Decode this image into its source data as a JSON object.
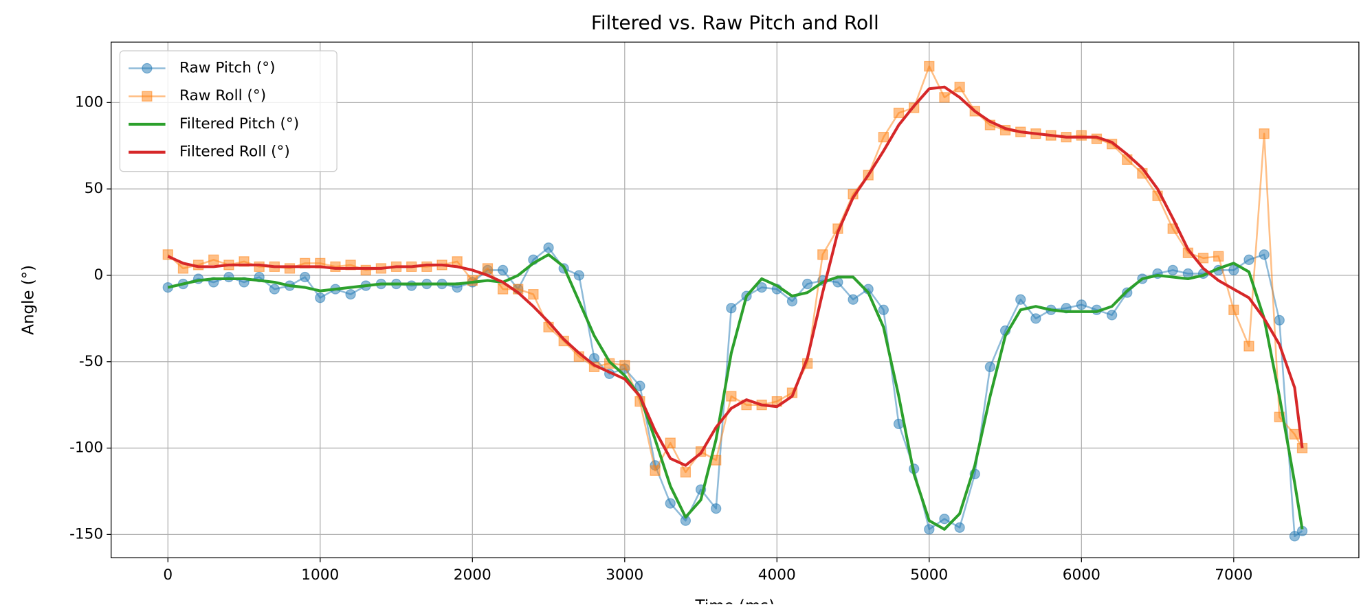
{
  "chart_data": {
    "type": "line",
    "title": "Filtered vs. Raw Pitch and Roll",
    "xlabel": "Time (ms)",
    "ylabel": "Angle (°)",
    "x": [
      0,
      100,
      200,
      300,
      400,
      500,
      600,
      700,
      800,
      900,
      1000,
      1100,
      1200,
      1300,
      1400,
      1500,
      1600,
      1700,
      1800,
      1900,
      2000,
      2100,
      2200,
      2300,
      2400,
      2500,
      2600,
      2700,
      2800,
      2900,
      3000,
      3100,
      3200,
      3300,
      3400,
      3500,
      3600,
      3700,
      3800,
      3900,
      4000,
      4100,
      4200,
      4300,
      4400,
      4500,
      4600,
      4700,
      4800,
      4900,
      5000,
      5100,
      5200,
      5300,
      5400,
      5500,
      5600,
      5700,
      5800,
      5900,
      6000,
      6100,
      6200,
      6300,
      6400,
      6500,
      6600,
      6700,
      6800,
      6900,
      7000,
      7100,
      7200,
      7300,
      7400,
      7450
    ],
    "series": [
      {
        "name": "Raw Pitch (°)",
        "color": "#1f77b4",
        "marker": "circle",
        "values": [
          -7,
          -5,
          -2,
          -4,
          -1,
          -4,
          -1,
          -8,
          -6,
          -1,
          -13,
          -8,
          -11,
          -6,
          -5,
          -5,
          -6,
          -5,
          -5,
          -7,
          -4,
          3,
          3,
          -8,
          9,
          16,
          4,
          0,
          -48,
          -57,
          -54,
          -64,
          -110,
          -132,
          -142,
          -124,
          -135,
          -19,
          -12,
          -7,
          -8,
          -15,
          -5,
          -3,
          -4,
          -14,
          -8,
          -20,
          -86,
          -112,
          -147,
          -141,
          -146,
          -115,
          -53,
          -32,
          -14,
          -25,
          -20,
          -19,
          -17,
          -20,
          -23,
          -10,
          -2,
          1,
          3,
          1,
          1,
          3,
          3,
          9,
          12,
          -26,
          -151,
          -148
        ]
      },
      {
        "name": "Raw Roll (°)",
        "color": "#ff7f0e",
        "marker": "square",
        "values": [
          12,
          4,
          6,
          9,
          6,
          8,
          5,
          5,
          4,
          7,
          7,
          5,
          6,
          3,
          4,
          5,
          5,
          5,
          6,
          8,
          -3,
          4,
          -8,
          -8,
          -11,
          -30,
          -38,
          -47,
          -53,
          -51,
          -52,
          -73,
          -113,
          -97,
          -114,
          -102,
          -107,
          -70,
          -75,
          -75,
          -73,
          -68,
          -51,
          12,
          27,
          47,
          58,
          80,
          94,
          97,
          121,
          103,
          109,
          95,
          87,
          84,
          83,
          82,
          81,
          80,
          81,
          79,
          76,
          67,
          59,
          46,
          27,
          13,
          10,
          11,
          -20,
          -41,
          82,
          -82,
          -92,
          -100
        ]
      },
      {
        "name": "Filtered Pitch (°)",
        "color": "#2ca02c",
        "values": [
          -7,
          -5,
          -3,
          -2,
          -2,
          -2,
          -3,
          -4,
          -6,
          -7,
          -9,
          -8,
          -7,
          -6,
          -5,
          -5,
          -5,
          -5,
          -5,
          -5,
          -4,
          -3,
          -4,
          0,
          7,
          12,
          5,
          -15,
          -35,
          -50,
          -58,
          -70,
          -95,
          -122,
          -140,
          -130,
          -95,
          -45,
          -12,
          -2,
          -6,
          -12,
          -10,
          -4,
          -1,
          -1,
          -10,
          -30,
          -70,
          -115,
          -142,
          -147,
          -138,
          -110,
          -70,
          -35,
          -20,
          -18,
          -20,
          -21,
          -21,
          -21,
          -18,
          -9,
          -2,
          0,
          -1,
          -2,
          0,
          4,
          7,
          2,
          -25,
          -70,
          -120,
          -147
        ]
      },
      {
        "name": "Filtered Roll (°)",
        "color": "#d62728",
        "values": [
          11,
          7,
          5,
          5,
          6,
          6,
          6,
          5,
          5,
          5,
          5,
          4,
          4,
          4,
          4,
          5,
          5,
          6,
          6,
          5,
          3,
          0,
          -4,
          -10,
          -18,
          -27,
          -37,
          -45,
          -52,
          -56,
          -60,
          -70,
          -90,
          -106,
          -110,
          -103,
          -88,
          -77,
          -72,
          -75,
          -76,
          -70,
          -48,
          -10,
          25,
          45,
          58,
          72,
          87,
          98,
          108,
          109,
          103,
          95,
          89,
          85,
          83,
          82,
          81,
          80,
          80,
          80,
          77,
          70,
          62,
          50,
          33,
          15,
          4,
          -3,
          -8,
          -13,
          -25,
          -40,
          -65,
          -100
        ]
      }
    ],
    "xlim": [
      -373,
      7822
    ],
    "xticks": [
      0,
      1000,
      2000,
      3000,
      4000,
      5000,
      6000,
      7000
    ],
    "ylim": [
      -163.5,
      135
    ],
    "yticks": [
      -150,
      -100,
      -50,
      0,
      50,
      100
    ],
    "grid": true,
    "legend": "upper left"
  }
}
